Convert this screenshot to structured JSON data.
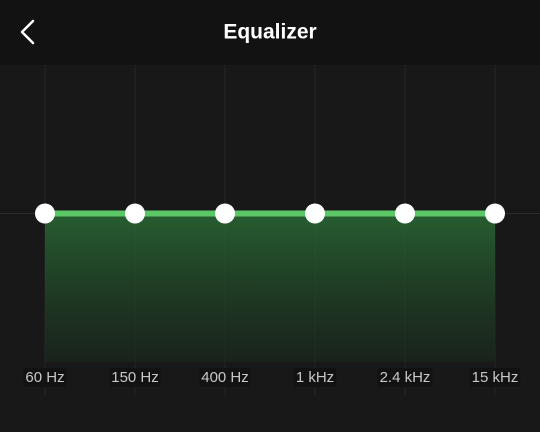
{
  "header": {
    "title": "Equalizer"
  },
  "chart_data": {
    "type": "line",
    "categories": [
      "60 Hz",
      "150 Hz",
      "400 Hz",
      "1 kHz",
      "2.4 kHz",
      "15 kHz"
    ],
    "values": [
      0,
      0,
      0,
      0,
      0,
      0
    ],
    "color": "#5bc766",
    "ylim": [
      -12,
      12
    ]
  }
}
